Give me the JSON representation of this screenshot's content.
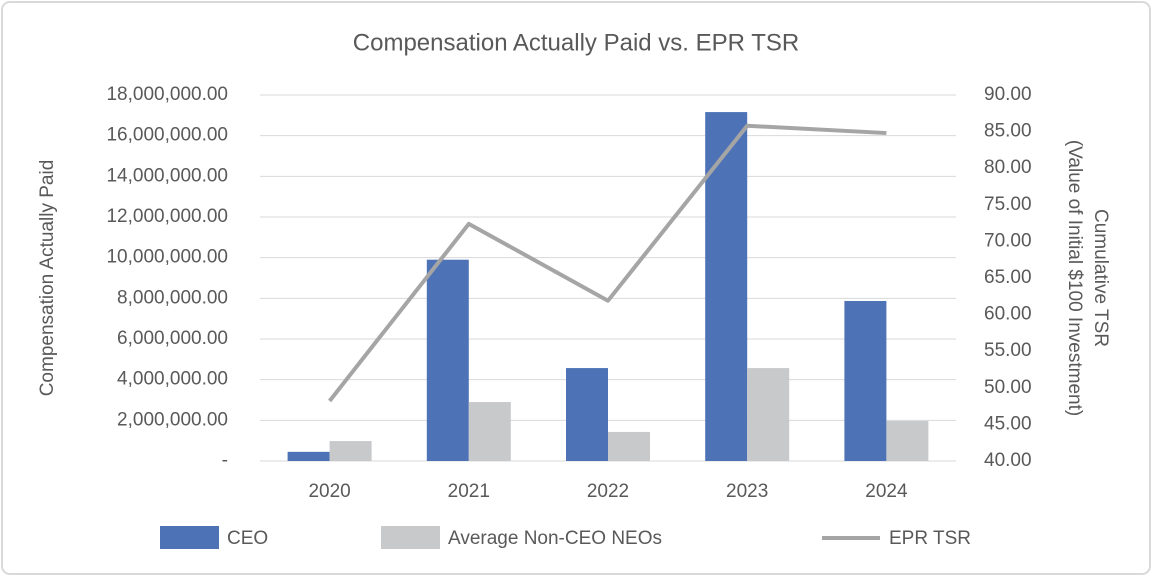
{
  "chart_data": {
    "type": "bar",
    "title": "Compensation Actually Paid vs. EPR TSR",
    "ylabel": "Compensation Actually Paid",
    "y2label": [
      "Cumulative TSR",
      "(Value of Initial $100 Investment)"
    ],
    "categories": [
      "2020",
      "2021",
      "2022",
      "2023",
      "2024"
    ],
    "series": [
      {
        "name": "CEO",
        "type": "bar",
        "color": "#4e72b6",
        "values": [
          450000,
          9900000,
          4570000,
          17160000,
          7870000
        ]
      },
      {
        "name": "Average Non-CEO NEOs",
        "type": "bar",
        "color": "#c8c9ca",
        "values": [
          980000,
          2900000,
          1430000,
          4570000,
          1970000
        ]
      },
      {
        "name": "EPR TSR",
        "type": "line",
        "axis": "y2",
        "color": "#a5a5a5",
        "values": [
          48.2,
          72.4,
          61.9,
          85.8,
          84.8
        ]
      }
    ],
    "ylim": [
      0,
      18000000
    ],
    "yticks": [
      {
        "value": 0,
        "label": "-"
      },
      {
        "value": 2000000,
        "label": "2,000,000.00"
      },
      {
        "value": 4000000,
        "label": "4,000,000.00"
      },
      {
        "value": 6000000,
        "label": "6,000,000.00"
      },
      {
        "value": 8000000,
        "label": "8,000,000.00"
      },
      {
        "value": 10000000,
        "label": "10,000,000.00"
      },
      {
        "value": 12000000,
        "label": "12,000,000.00"
      },
      {
        "value": 14000000,
        "label": "14,000,000.00"
      },
      {
        "value": 16000000,
        "label": "16,000,000.00"
      },
      {
        "value": 18000000,
        "label": "18,000,000.00"
      }
    ],
    "y2lim": [
      40,
      90
    ],
    "y2ticks": [
      {
        "value": 40,
        "label": "40.00"
      },
      {
        "value": 45,
        "label": "45.00"
      },
      {
        "value": 50,
        "label": "50.00"
      },
      {
        "value": 55,
        "label": "55.00"
      },
      {
        "value": 60,
        "label": "60.00"
      },
      {
        "value": 65,
        "label": "65.00"
      },
      {
        "value": 70,
        "label": "70.00"
      },
      {
        "value": 75,
        "label": "75.00"
      },
      {
        "value": 80,
        "label": "80.00"
      },
      {
        "value": 85,
        "label": "85.00"
      },
      {
        "value": 90,
        "label": "90.00"
      }
    ],
    "grid": true,
    "legend": "bottom"
  }
}
